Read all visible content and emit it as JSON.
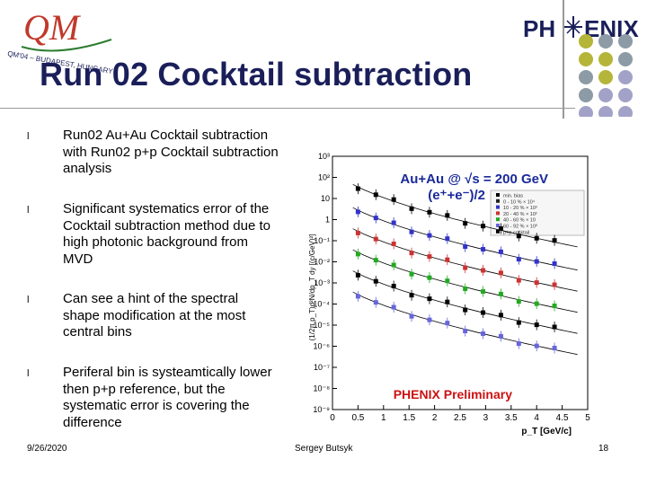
{
  "logo": {
    "text_top": "QM",
    "text_ring": "QM'04 – BUDAPEST, HUNGARY"
  },
  "phenix_logo": {
    "text_left": "PH",
    "text_right": "ENIX"
  },
  "title": "Run 02 Cocktail subtraction",
  "bullets": [
    {
      "text": "Run02 Au+Au Cocktail subtraction with Run02 p+p Cocktail subtraction analysis"
    },
    {
      "text": "Significant systematics error of the Cocktail subtraction method due to high photonic background from MVD"
    },
    {
      "text": "Can see a hint of the spectral shape modification at the most central bins"
    },
    {
      "text": "Periferal bin is systeamtically lower then p+p reference, but the systematic error is covering the difference"
    }
  ],
  "bullet_marker": "l",
  "footer": {
    "date": "9/26/2020",
    "author": "Sergey Butsyk",
    "page": "18"
  },
  "colors": {
    "title": "#1a1f5a",
    "plot_title": "#1a2a9a",
    "preliminary": "#cc1111",
    "dot_olive": "#b5b53a",
    "dot_gray": "#8c9ba5",
    "dot_lavender": "#a2a2c8"
  },
  "figure": {
    "plot_title": "Au+Au @ √s = 200 GeV",
    "plot_subtitle": "(e⁺+e⁻)/2",
    "ylabel": "(1/2π p_T)d²N/dp_T dy [(c/GeV)²]",
    "xlabel": "p_T [GeV/c]",
    "preliminary": "PHENIX Preliminary",
    "legend": [
      "min. bias",
      "0 - 10 % × 10⁴",
      "10 - 20 % × 10³",
      "20 - 40 % × 10²",
      "40 - 60 % × 10",
      "60 - 92 % × 10⁰",
      "p+p cocktail"
    ],
    "xticks": [
      "0",
      "0.5",
      "1",
      "1.5",
      "2",
      "2.5",
      "3",
      "3.5",
      "4",
      "4.5",
      "5"
    ],
    "yticks": [
      "10⁻⁹",
      "10⁻⁸",
      "10⁻⁷",
      "10⁻⁶",
      "10⁻⁵",
      "10⁻⁴",
      "10⁻³",
      "10⁻²",
      "10⁻¹",
      "1",
      "10",
      "10²",
      "10³"
    ],
    "xlim": [
      0,
      5
    ],
    "ylog_range": [
      -9,
      3
    ]
  }
}
